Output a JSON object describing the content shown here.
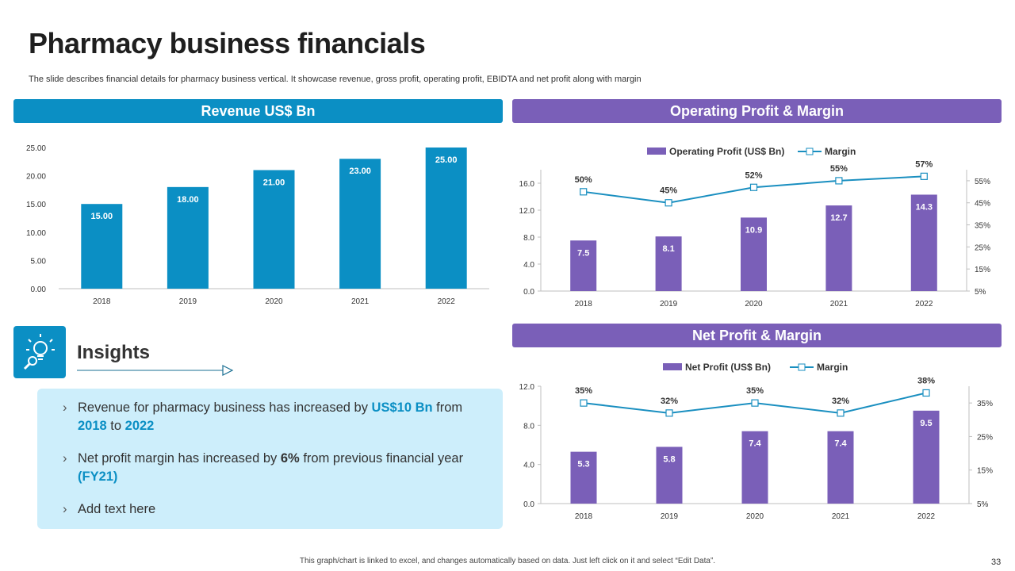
{
  "title": "Pharmacy business financials",
  "subtitle": "The slide describes financial details for pharmacy business vertical. It showcase revenue, gross profit, operating profit, EBIDTA  and net profit along with margin",
  "banners": {
    "revenue": "Revenue US$ Bn",
    "operating": "Operating Profit & Margin",
    "net": "Net Profit & Margin"
  },
  "insights": {
    "title": "Insights",
    "icon": "lightbulb-magnifier-icon",
    "bullets": [
      {
        "parts": [
          {
            "t": "Revenue for pharmacy business has increased by ",
            "s": ""
          },
          {
            "t": "US$10 Bn",
            "s": "hl"
          },
          {
            "t": " from ",
            "s": ""
          },
          {
            "t": "2018",
            "s": "hl"
          },
          {
            "t": " to ",
            "s": ""
          },
          {
            "t": "2022",
            "s": "hl"
          }
        ]
      },
      {
        "parts": [
          {
            "t": "Net profit margin has increased by ",
            "s": ""
          },
          {
            "t": "6%",
            "s": "bd"
          },
          {
            "t": " from previous financial year ",
            "s": ""
          },
          {
            "t": "(FY21)",
            "s": "hl"
          }
        ]
      },
      {
        "parts": [
          {
            "t": "Add text here",
            "s": ""
          }
        ]
      }
    ],
    "bullet_glyph": "›"
  },
  "footer": "This graph/chart is linked to excel, and changes automatically based on data. Just left click on it and select “Edit Data”.",
  "page_number": "33",
  "colors": {
    "blue": "#0b8fc4",
    "purple": "#7a5fb8",
    "line": "#1a8fc0",
    "light_blue_box": "#cdeefb"
  },
  "chart_data": [
    {
      "id": "revenue",
      "type": "bar",
      "title": "Revenue US$ Bn",
      "categories": [
        "2018",
        "2019",
        "2020",
        "2021",
        "2022"
      ],
      "values": [
        15.0,
        18.0,
        21.0,
        23.0,
        25.0
      ],
      "data_labels": [
        "15.00",
        "18.00",
        "21.00",
        "23.00",
        "25.00"
      ],
      "ylim": [
        0,
        25
      ],
      "yticks": [
        "0.00",
        "5.00",
        "10.00",
        "15.00",
        "20.00",
        "25.00"
      ],
      "color": "#0b8fc4",
      "grid": false
    },
    {
      "id": "operating",
      "type": "bar",
      "title": "Operating Profit & Margin",
      "categories": [
        "2018",
        "2019",
        "2020",
        "2021",
        "2022"
      ],
      "series": [
        {
          "name": "Operating Profit (US$ Bn)",
          "type": "bar",
          "axis": "left",
          "values": [
            7.5,
            8.1,
            10.9,
            12.7,
            14.3
          ],
          "labels": [
            "7.5",
            "8.1",
            "10.9",
            "12.7",
            "14.3"
          ]
        },
        {
          "name": "Margin",
          "type": "line",
          "axis": "right",
          "values": [
            50,
            45,
            52,
            55,
            57
          ],
          "labels": [
            "50%",
            "45%",
            "52%",
            "55%",
            "57%"
          ]
        }
      ],
      "ylim": [
        0,
        18
      ],
      "yticks": [
        "0.0",
        "4.0",
        "8.0",
        "12.0",
        "16.0"
      ],
      "y2lim": [
        5,
        60
      ],
      "y2ticks": [
        "5%",
        "15%",
        "25%",
        "35%",
        "45%",
        "55%"
      ],
      "legend": "top",
      "grid": false
    },
    {
      "id": "net",
      "type": "bar",
      "title": "Net Profit & Margin",
      "categories": [
        "2018",
        "2019",
        "2020",
        "2021",
        "2022"
      ],
      "series": [
        {
          "name": "Net Profit (US$ Bn)",
          "type": "bar",
          "axis": "left",
          "values": [
            5.3,
            5.8,
            7.4,
            7.4,
            9.5
          ],
          "labels": [
            "5.3",
            "5.8",
            "7.4",
            "7.4",
            "9.5"
          ]
        },
        {
          "name": "Margin",
          "type": "line",
          "axis": "right",
          "values": [
            35,
            32,
            35,
            32,
            38
          ],
          "labels": [
            "35%",
            "32%",
            "35%",
            "32%",
            "38%"
          ]
        }
      ],
      "ylim": [
        0,
        12
      ],
      "yticks": [
        "0.0",
        "4.0",
        "8.0",
        "12.0"
      ],
      "y2lim": [
        5,
        40
      ],
      "y2ticks": [
        "5%",
        "15%",
        "25%",
        "35%"
      ],
      "legend": "top",
      "grid": false
    }
  ]
}
